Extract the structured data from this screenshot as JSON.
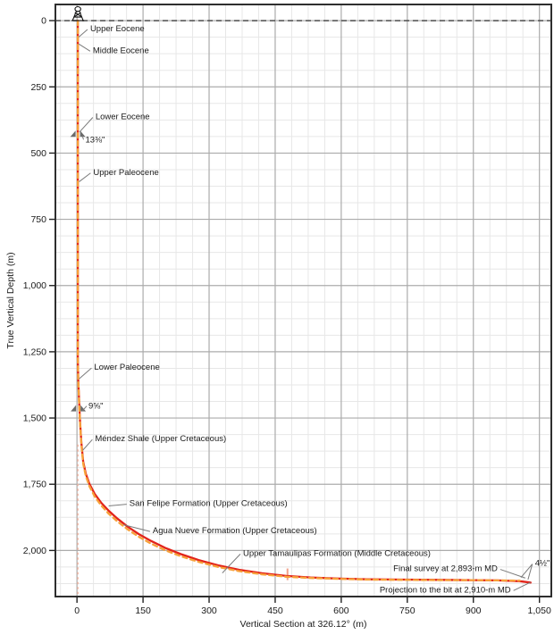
{
  "chart_data": {
    "type": "line",
    "xlabel": "Vertical Section at 326.12° (m)",
    "ylabel": "True Vertical Depth (m)",
    "xlim": [
      -49,
      1077
    ],
    "ylim": [
      -61,
      2174
    ],
    "depth_axis_inverted_down": true,
    "grid": true,
    "x_ticks": [
      0,
      150,
      300,
      450,
      600,
      750,
      900,
      1050
    ],
    "x_tick_labels": [
      "0",
      "150",
      "300",
      "450",
      "600",
      "750",
      "900",
      "1,050"
    ],
    "y_ticks": [
      0,
      250,
      500,
      750,
      1000,
      1250,
      1500,
      1750,
      2000
    ],
    "y_tick_labels": [
      "0",
      "250",
      "500",
      "750",
      "1,000",
      "1,250",
      "1,500",
      "1,750",
      "2,000"
    ],
    "x_minor_step": 37.5,
    "y_minor_step": 62.5,
    "colors": {
      "actual": "#e2231a",
      "survey_dashed": "#f7a13a",
      "reference": "#f3b4a0",
      "marker_tick": "#f2a28c",
      "grid_minor": "#e7e7e7",
      "grid_major": "#ababab",
      "border": "#2e2e2e",
      "surface_line": "#4d4d4d",
      "leader": "#7b7b7b",
      "shoe": "#6b6b6b",
      "text": "#1a1a1a"
    },
    "surface_depth_line": 0,
    "series": [
      {
        "name": "well-path-solid (projection to the bit)",
        "style": "solid",
        "color_key": "actual",
        "points": [
          [
            2,
            0
          ],
          [
            2,
            1280
          ],
          [
            3,
            1360
          ],
          [
            5,
            1440
          ],
          [
            7,
            1515
          ],
          [
            10,
            1595
          ],
          [
            14,
            1665
          ],
          [
            20,
            1710
          ],
          [
            28,
            1748
          ],
          [
            40,
            1786
          ],
          [
            55,
            1820
          ],
          [
            72,
            1850
          ],
          [
            92,
            1880
          ],
          [
            115,
            1910
          ],
          [
            140,
            1938
          ],
          [
            168,
            1964
          ],
          [
            200,
            1990
          ],
          [
            236,
            2014
          ],
          [
            276,
            2036
          ],
          [
            320,
            2056
          ],
          [
            368,
            2073
          ],
          [
            420,
            2086
          ],
          [
            475,
            2096
          ],
          [
            530,
            2102
          ],
          [
            590,
            2106
          ],
          [
            660,
            2109
          ],
          [
            740,
            2110
          ],
          [
            820,
            2111
          ],
          [
            900,
            2112
          ],
          [
            955,
            2113
          ],
          [
            1005,
            2116
          ],
          [
            1030,
            2121
          ]
        ]
      },
      {
        "name": "well-path-dashed (survey)",
        "style": "dashed",
        "color_key": "survey_dashed",
        "points": [
          [
            2,
            0
          ],
          [
            2,
            1280
          ],
          [
            3,
            1360
          ],
          [
            5,
            1443
          ],
          [
            7,
            1520
          ],
          [
            10,
            1601
          ],
          [
            14,
            1672
          ],
          [
            20,
            1718
          ],
          [
            28,
            1757
          ],
          [
            40,
            1796
          ],
          [
            55,
            1830
          ],
          [
            72,
            1861
          ],
          [
            92,
            1891
          ],
          [
            115,
            1920
          ],
          [
            140,
            1948
          ],
          [
            168,
            1974
          ],
          [
            200,
            1999
          ],
          [
            236,
            2022
          ],
          [
            276,
            2043
          ],
          [
            320,
            2062
          ],
          [
            368,
            2078
          ],
          [
            420,
            2090
          ],
          [
            475,
            2099
          ],
          [
            530,
            2104
          ],
          [
            590,
            2107
          ],
          [
            660,
            2110
          ],
          [
            740,
            2111
          ],
          [
            820,
            2112
          ],
          [
            900,
            2112
          ],
          [
            955,
            2113
          ],
          [
            1005,
            2114
          ]
        ]
      }
    ],
    "vertical_reference_line": {
      "vs": 2,
      "from_tvd": 1600,
      "to_tvd": 2172
    },
    "path_marker_tick": {
      "vs": 478,
      "tvd_top": 2068,
      "tvd_bottom": 2112
    },
    "derrick": {
      "vs": 2,
      "tvd": 0
    },
    "casing_shoes": [
      {
        "label": "13⅜\"",
        "vs": 2,
        "tvd": 432,
        "label_vs": 19,
        "label_tvd": 449
      },
      {
        "label": "9⅝\"",
        "vs": 3,
        "tvd": 1468,
        "label_vs": 26,
        "label_tvd": 1455
      }
    ],
    "annotations": [
      {
        "text": "Upper Eocene",
        "label_vs": 30,
        "label_tvd": 30,
        "align": "start",
        "targets": [
          [
            4,
            62
          ]
        ]
      },
      {
        "text": "Middle Eocene",
        "label_vs": 36,
        "label_tvd": 112,
        "align": "start",
        "targets": [
          [
            4,
            88
          ]
        ]
      },
      {
        "text": "Lower Eocene",
        "label_vs": 42,
        "label_tvd": 362,
        "align": "start",
        "targets": [
          [
            6,
            420
          ]
        ]
      },
      {
        "text": "Upper Paleocene",
        "label_vs": 37,
        "label_tvd": 572,
        "align": "start",
        "targets": [
          [
            5,
            608
          ]
        ]
      },
      {
        "text": "Lower Paleocene",
        "label_vs": 39,
        "label_tvd": 1308,
        "align": "start",
        "targets": [
          [
            5,
            1352
          ]
        ]
      },
      {
        "text": "Méndez Shale (Upper Cretaceous)",
        "label_vs": 41,
        "label_tvd": 1578,
        "align": "start",
        "targets": [
          [
            13,
            1622
          ]
        ]
      },
      {
        "text": "San Felipe Formation (Upper Cretaceous)",
        "label_vs": 119,
        "label_tvd": 1822,
        "align": "start",
        "targets": [
          [
            72,
            1832
          ]
        ]
      },
      {
        "text": "Agua Nueve Formation (Upper Cretaceous)",
        "label_vs": 172,
        "label_tvd": 1925,
        "align": "start",
        "targets": [
          [
            106,
            1903
          ]
        ]
      },
      {
        "text": "Upper Tamaulipas Formation (Middle Cretaceous)",
        "label_vs": 377,
        "label_tvd": 2010,
        "align": "start",
        "targets": [
          [
            330,
            2085
          ]
        ]
      },
      {
        "text": "Final survey at 2,893-m MD",
        "label_vs": 955,
        "label_tvd": 2068,
        "align": "end",
        "targets": [
          [
            1018,
            2104
          ]
        ]
      },
      {
        "text": "4½\"",
        "label_vs": 1040,
        "label_tvd": 2048,
        "align": "start",
        "targets": [
          [
            1008,
            2102
          ],
          [
            1024,
            2110
          ]
        ]
      },
      {
        "text": "Projection to the bit at 2,910-m MD",
        "label_vs": 985,
        "label_tvd": 2148,
        "align": "end",
        "targets": [
          [
            1030,
            2120
          ]
        ]
      }
    ]
  }
}
